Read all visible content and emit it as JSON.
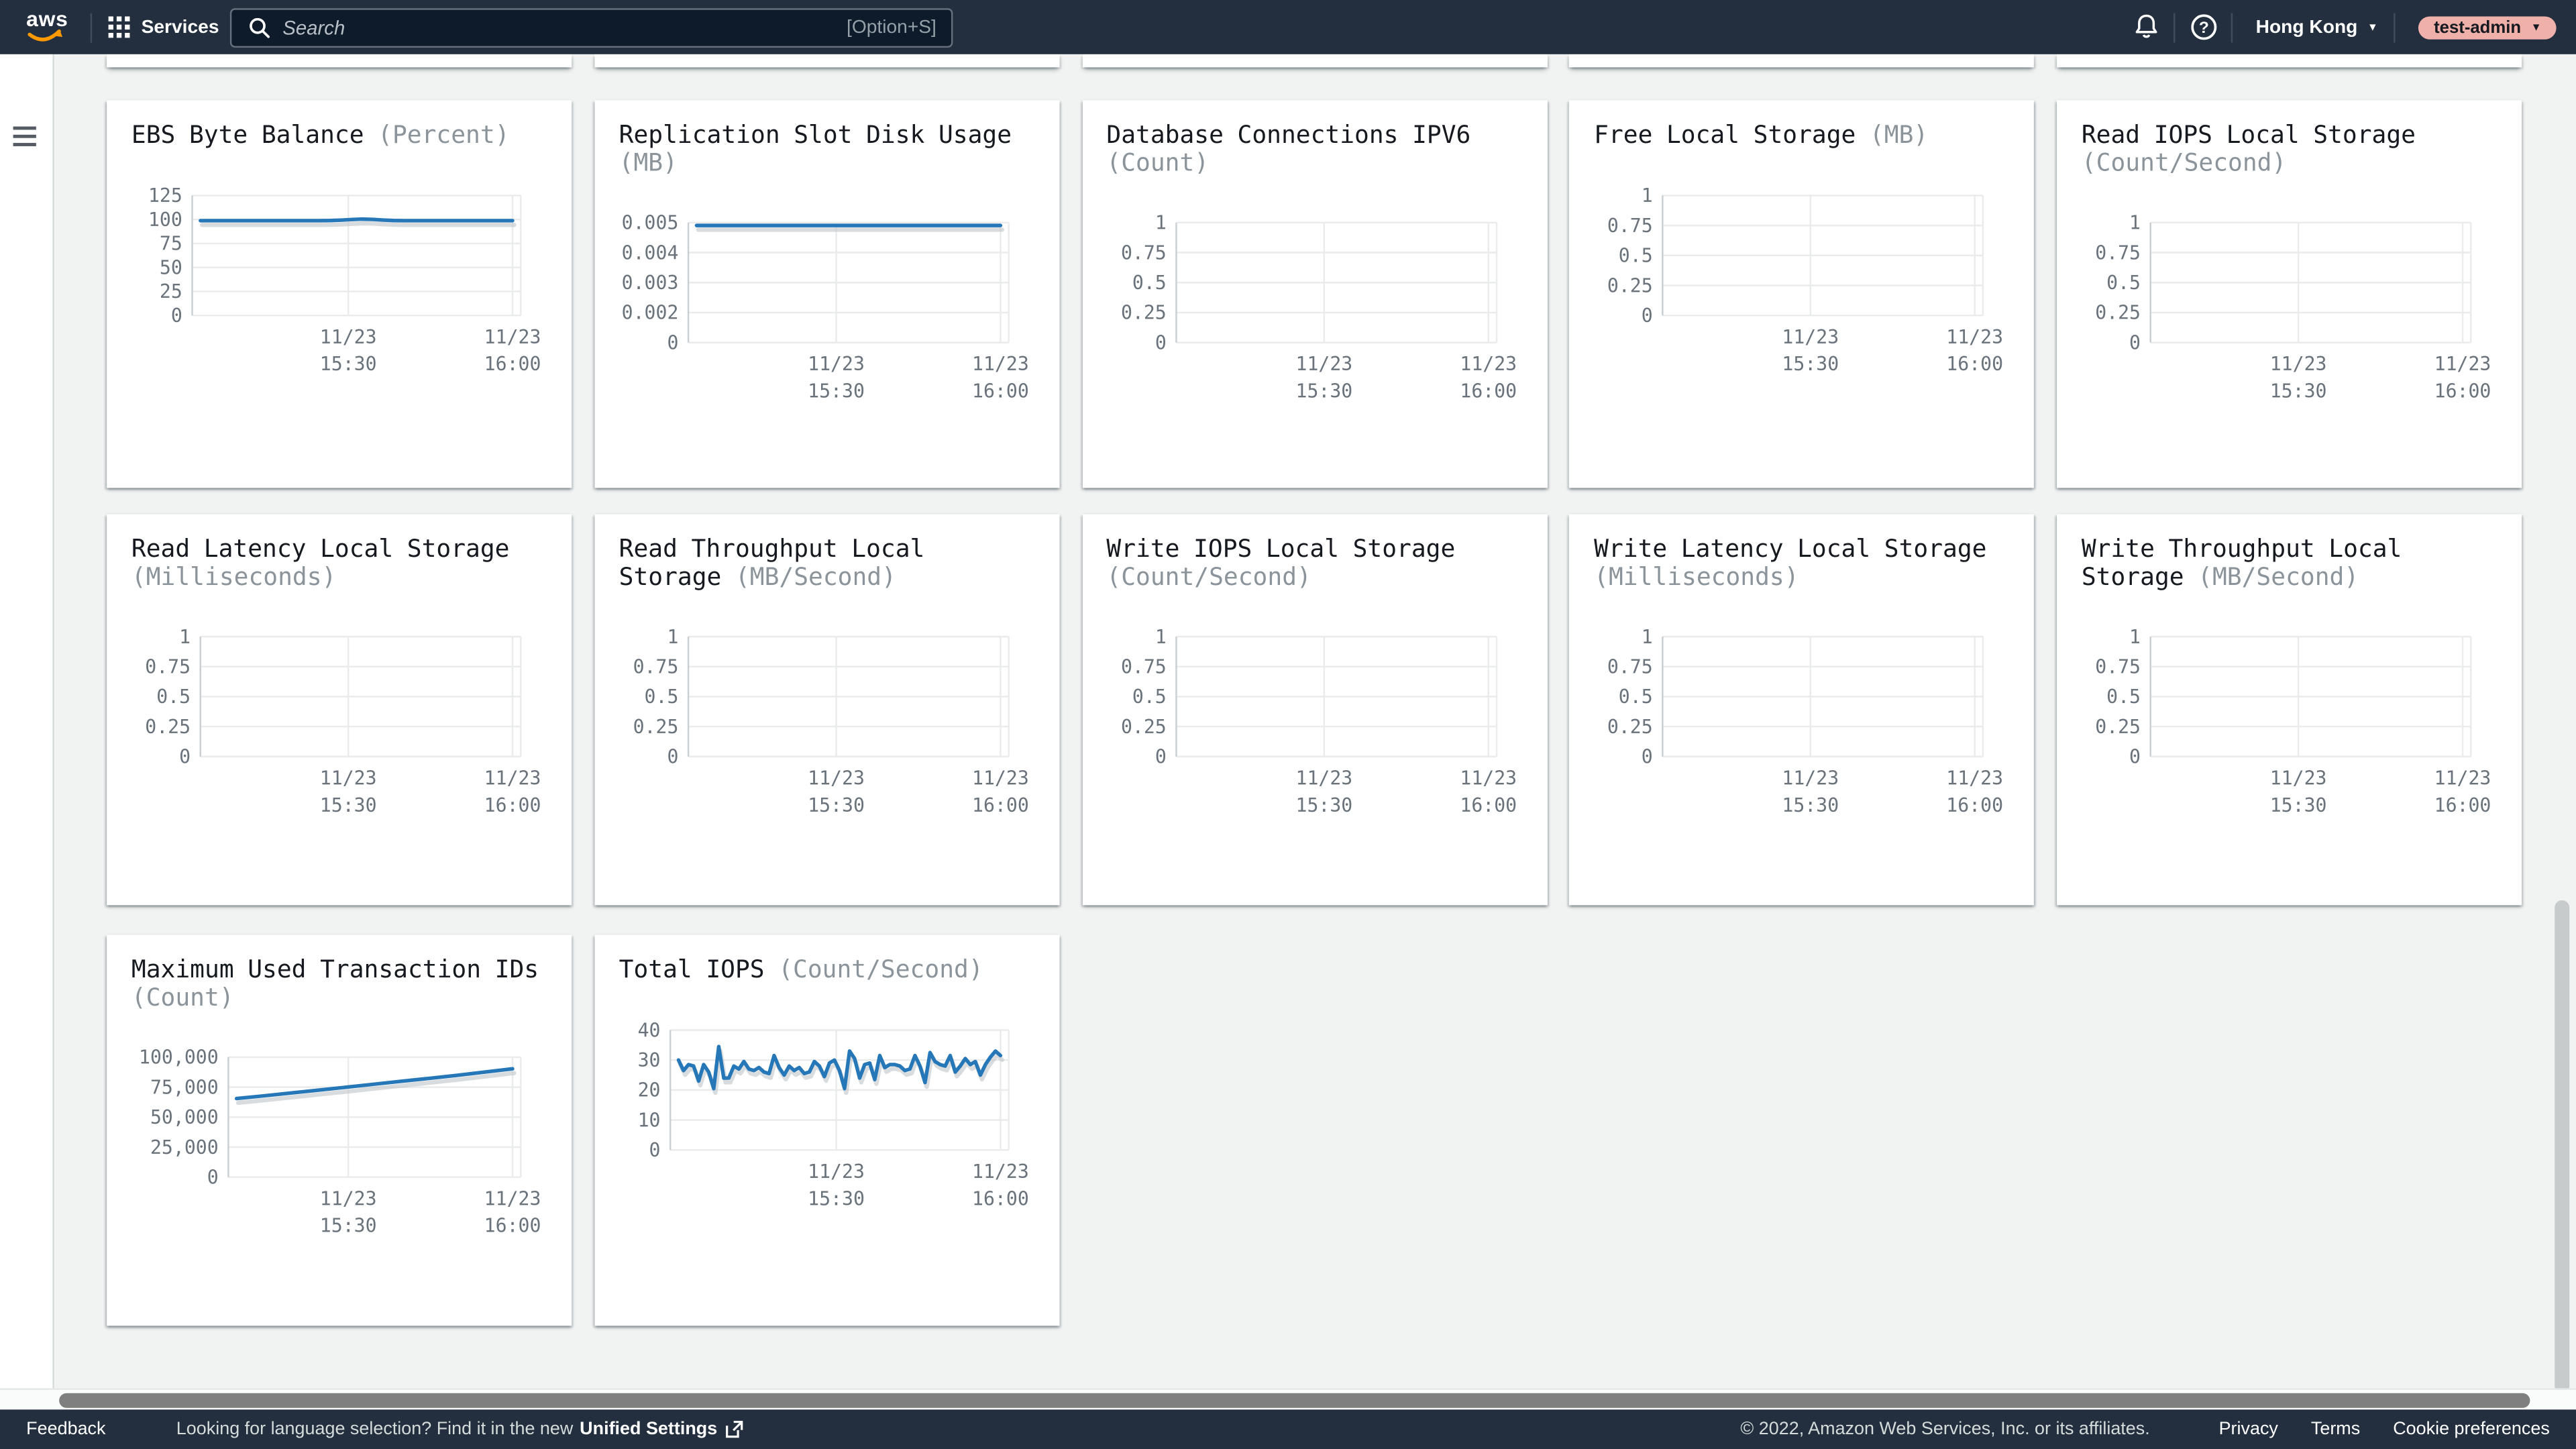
{
  "navbar": {
    "logo": "aws",
    "services": "Services",
    "search": {
      "placeholder": "Search",
      "shortcut": "[Option+S]"
    },
    "region": "Hong Kong",
    "user": "test-admin"
  },
  "footer": {
    "feedback": "Feedback",
    "language_prompt": "Looking for language selection? Find it in the new",
    "language_link": "Unified Settings",
    "copyright": "© 2022, Amazon Web Services, Inc. or its affiliates.",
    "links": [
      "Privacy",
      "Terms",
      "Cookie preferences"
    ]
  },
  "colors": {
    "navbar_bg": "#232f3e",
    "page_bg": "#f1f2f2",
    "accent_line": "#2577b8",
    "aws_orange": "#ff9900",
    "user_badge_bg": "#efb0a9",
    "grid_line": "#e9ebec",
    "axis_text": "#6a737b",
    "title_text": "#16191f",
    "unit_text": "#8b949a"
  },
  "chart_data": [
    {
      "type": "line",
      "row": 0,
      "col": 0,
      "title": "EBS Byte Balance",
      "unit": "(Percent)",
      "title_lines": 1,
      "y_ticks": [
        "125",
        "100",
        "75",
        "50",
        "25",
        "0"
      ],
      "y_max": 125,
      "y_min": 0,
      "x_tick_labels": [
        [
          "11/23",
          "15:30"
        ],
        [
          "11/23",
          "16:00"
        ]
      ],
      "values": [
        98.8,
        98.8,
        98.8,
        98.8,
        98.8,
        98.8,
        98.8,
        98.8,
        98.8,
        98.8,
        98.8,
        98.8,
        98.9,
        99.3,
        99.9,
        100.4,
        100.1,
        99.4,
        98.9,
        98.8,
        98.8,
        98.8,
        98.8,
        98.8,
        98.8,
        98.8,
        98.8,
        98.8,
        98.8,
        98.8
      ]
    },
    {
      "type": "line",
      "row": 0,
      "col": 1,
      "title": "Replication Slot Disk Usage",
      "unit": "(MB)",
      "title_lines": 2,
      "y_ticks": [
        "0.005",
        "0.004",
        "0.003",
        "0.002",
        "0"
      ],
      "y_max": 0.005,
      "y_min": 0,
      "x_tick_labels": [
        [
          "11/23",
          "15:30"
        ],
        [
          "11/23",
          "16:00"
        ]
      ],
      "values": [
        0.00488,
        0.00488,
        0.00488,
        0.00488,
        0.00488,
        0.00488,
        0.00488,
        0.00488,
        0.00488,
        0.00488,
        0.00488,
        0.00488,
        0.00488,
        0.00488,
        0.00488,
        0.00488,
        0.00488,
        0.00488,
        0.00488,
        0.00488,
        0.00488,
        0.00488,
        0.00488,
        0.00488
      ]
    },
    {
      "type": "line",
      "row": 0,
      "col": 2,
      "title": "Database Connections IPV6",
      "unit": "(Count)",
      "title_lines": 2,
      "y_ticks": [
        "1",
        "0.75",
        "0.5",
        "0.25",
        "0"
      ],
      "y_max": 1,
      "y_min": 0,
      "x_tick_labels": [
        [
          "11/23",
          "15:30"
        ],
        [
          "11/23",
          "16:00"
        ]
      ],
      "values": null
    },
    {
      "type": "line",
      "row": 0,
      "col": 3,
      "title": "Free Local Storage",
      "unit": "(MB)",
      "title_lines": 1,
      "y_ticks": [
        "1",
        "0.75",
        "0.5",
        "0.25",
        "0"
      ],
      "y_max": 1,
      "y_min": 0,
      "x_tick_labels": [
        [
          "11/23",
          "15:30"
        ],
        [
          "11/23",
          "16:00"
        ]
      ],
      "values": null
    },
    {
      "type": "line",
      "row": 0,
      "col": 4,
      "title": "Read IOPS Local Storage",
      "unit": "(Count/Second)",
      "title_lines": 2,
      "y_ticks": [
        "1",
        "0.75",
        "0.5",
        "0.25",
        "0"
      ],
      "y_max": 1,
      "y_min": 0,
      "x_tick_labels": [
        [
          "11/23",
          "15:30"
        ],
        [
          "11/23",
          "16:00"
        ]
      ],
      "values": null
    },
    {
      "type": "line",
      "row": 1,
      "col": 0,
      "title": "Read Latency Local Storage",
      "unit": "(Milliseconds)",
      "title_lines": 2,
      "y_ticks": [
        "1",
        "0.75",
        "0.5",
        "0.25",
        "0"
      ],
      "y_max": 1,
      "y_min": 0,
      "x_tick_labels": [
        [
          "11/23",
          "15:30"
        ],
        [
          "11/23",
          "16:00"
        ]
      ],
      "values": null
    },
    {
      "type": "line",
      "row": 1,
      "col": 1,
      "title": "Read Throughput Local Storage",
      "unit": "(MB/Second)",
      "title_lines": 2,
      "y_ticks": [
        "1",
        "0.75",
        "0.5",
        "0.25",
        "0"
      ],
      "y_max": 1,
      "y_min": 0,
      "x_tick_labels": [
        [
          "11/23",
          "15:30"
        ],
        [
          "11/23",
          "16:00"
        ]
      ],
      "values": null
    },
    {
      "type": "line",
      "row": 1,
      "col": 2,
      "title": "Write IOPS Local Storage",
      "unit": "(Count/Second)",
      "title_lines": 2,
      "y_ticks": [
        "1",
        "0.75",
        "0.5",
        "0.25",
        "0"
      ],
      "y_max": 1,
      "y_min": 0,
      "x_tick_labels": [
        [
          "11/23",
          "15:30"
        ],
        [
          "11/23",
          "16:00"
        ]
      ],
      "values": null
    },
    {
      "type": "line",
      "row": 1,
      "col": 3,
      "title": "Write Latency Local Storage",
      "unit": "(Milliseconds)",
      "title_lines": 2,
      "y_ticks": [
        "1",
        "0.75",
        "0.5",
        "0.25",
        "0"
      ],
      "y_max": 1,
      "y_min": 0,
      "x_tick_labels": [
        [
          "11/23",
          "15:30"
        ],
        [
          "11/23",
          "16:00"
        ]
      ],
      "values": null
    },
    {
      "type": "line",
      "row": 1,
      "col": 4,
      "title": "Write Throughput Local Storage",
      "unit": "(MB/Second)",
      "title_lines": 2,
      "y_ticks": [
        "1",
        "0.75",
        "0.5",
        "0.25",
        "0"
      ],
      "y_max": 1,
      "y_min": 0,
      "x_tick_labels": [
        [
          "11/23",
          "15:30"
        ],
        [
          "11/23",
          "16:00"
        ]
      ],
      "values": null
    },
    {
      "type": "line",
      "row": 2,
      "col": 0,
      "title": "Maximum Used Transaction IDs",
      "unit": "(Count)",
      "title_lines": 2,
      "y_ticks": [
        "100,000",
        "75,000",
        "50,000",
        "25,000",
        "0"
      ],
      "y_max": 100000,
      "y_min": 0,
      "x_tick_labels": [
        [
          "11/23",
          "15:30"
        ],
        [
          "11/23",
          "16:00"
        ]
      ],
      "values": [
        65500,
        67800,
        70200,
        72600,
        75000,
        77500,
        80000,
        82400,
        84900,
        87600,
        90300
      ]
    },
    {
      "type": "line",
      "row": 2,
      "col": 1,
      "title": "Total IOPS",
      "unit": "(Count/Second)",
      "title_lines": 1,
      "y_ticks": [
        "40",
        "30",
        "20",
        "10",
        "0"
      ],
      "y_max": 40,
      "y_min": 0,
      "x_tick_labels": [
        [
          "11/23",
          "15:30"
        ],
        [
          "11/23",
          "16:00"
        ]
      ],
      "values": [
        30,
        26.5,
        28.5,
        28,
        23,
        28.5,
        26,
        20.5,
        34.5,
        24,
        24,
        28,
        27,
        29.5,
        27,
        26.5,
        27.5,
        26,
        25.5,
        31.5,
        27.5,
        25,
        28,
        26.5,
        27.5,
        25.5,
        26,
        29.5,
        28,
        24.5,
        29,
        30,
        26.5,
        20.5,
        33,
        30.5,
        24,
        28.5,
        29,
        23.5,
        31.5,
        27.5,
        28.5,
        28.5,
        28,
        26.5,
        27,
        31.5,
        28,
        22.5,
        32.5,
        29.5,
        28.5,
        28,
        31.5,
        26,
        28,
        30.5,
        28.5,
        29.5,
        25,
        28.5,
        31,
        33,
        31.5
      ]
    }
  ]
}
